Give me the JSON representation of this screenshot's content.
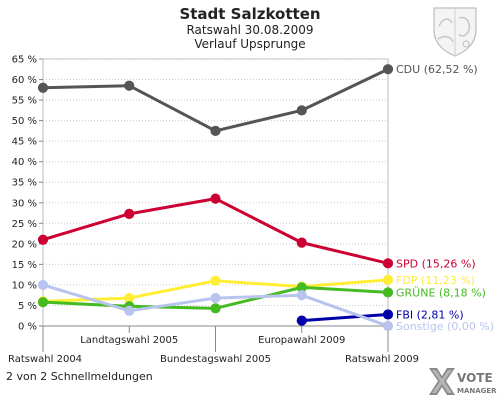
{
  "chart_data": {
    "type": "line",
    "title": "Stadt Salzkotten",
    "subtitle_1": "Ratswahl 30.08.2009",
    "subtitle_2": "Verlauf Upsprunge",
    "categories": [
      "Ratswahl 2004",
      "Landtagswahl 2005",
      "Bundestagswahl 2005",
      "Europawahl 2009",
      "Ratswahl 2009"
    ],
    "ylim": [
      0,
      65
    ],
    "y_ticks": [
      "0 %",
      "5 %",
      "10 %",
      "15 %",
      "20 %",
      "25 %",
      "30 %",
      "35 %",
      "40 %",
      "45 %",
      "50 %",
      "55 %",
      "60 %",
      "65 %"
    ],
    "grid": true,
    "series": [
      {
        "name": "CDU",
        "label": "CDU (62,52 %)",
        "color": "#555555",
        "values": [
          58.0,
          58.5,
          47.5,
          52.5,
          62.52
        ]
      },
      {
        "name": "SPD",
        "label": "SPD (15,26 %)",
        "color": "#cc0033",
        "values": [
          21.0,
          27.3,
          31.0,
          20.3,
          15.26
        ]
      },
      {
        "name": "FDP",
        "label": "FDP (11,23 %)",
        "color": "#ffee33",
        "values": [
          6.0,
          6.8,
          11.0,
          9.6,
          11.23
        ]
      },
      {
        "name": "GRÜNE",
        "label": "GRÜNE (8,18 %)",
        "color": "#44bb22",
        "values": [
          5.8,
          4.8,
          4.3,
          9.4,
          8.18
        ]
      },
      {
        "name": "FBI",
        "label": "FBI (2,81 %)",
        "color": "#0000aa",
        "values": [
          null,
          null,
          null,
          1.3,
          2.81
        ]
      },
      {
        "name": "Sonstige",
        "label": "Sonstige (0,00 %)",
        "color": "#b8c4ee",
        "values": [
          10.0,
          3.7,
          6.8,
          7.5,
          0.0
        ]
      }
    ]
  },
  "footer": {
    "text": "2 von 2 Schnellmeldungen"
  },
  "logo": {
    "line1": "VOTE",
    "line2": "MANAGER"
  },
  "crest": {
    "icon": "nrw-coat-of-arms-icon"
  }
}
